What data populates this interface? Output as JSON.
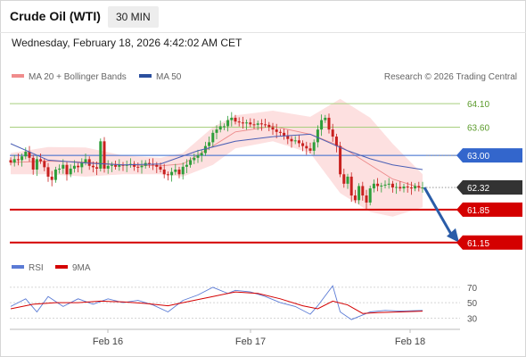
{
  "header": {
    "title": "Crude Oil (WTI)",
    "timeframe": "30 MIN",
    "datetime": "Wednesday, February 18, 2026 4:42:02 AM CET"
  },
  "legend": {
    "bollinger": "MA 20 + Bollinger Bands",
    "ma50": "MA 50",
    "credit": "Research © 2026 Trading Central",
    "rsi": "RSI",
    "rsi_ma": "9MA"
  },
  "colors": {
    "up": "#2e9e3a",
    "down": "#c8201e",
    "bollinger_fill": "#fde0e0",
    "ma20": "#ec8a8a",
    "ma50": "#4a5fb5",
    "support": "#d40000",
    "resistance_minor": "#a8cf7e",
    "resistance_major": "#3366cc",
    "current": "#333333",
    "arrow": "#2a5ca8",
    "rsi": "#5b7bd5",
    "rsi_ma": "#d40000"
  },
  "chart_data": {
    "type": "candlestick",
    "y_range": [
      60.9,
      64.5
    ],
    "x_labels": [
      "Feb 16",
      "Feb 17",
      "Feb 18"
    ],
    "levels": [
      {
        "value": 64.1,
        "label": "64.10",
        "kind": "resistance-minor"
      },
      {
        "value": 63.6,
        "label": "63.60",
        "kind": "resistance-minor"
      },
      {
        "value": 63.0,
        "label": "63.00",
        "kind": "resistance-major"
      },
      {
        "value": 62.32,
        "label": "62.32",
        "kind": "current"
      },
      {
        "value": 61.85,
        "label": "61.85",
        "kind": "support"
      },
      {
        "value": 61.15,
        "label": "61.15",
        "kind": "support"
      }
    ],
    "forecast_target": 61.15,
    "close": [
      62.85,
      62.92,
      62.9,
      62.98,
      63.08,
      62.95,
      62.7,
      62.92,
      62.88,
      62.75,
      62.55,
      62.48,
      62.7,
      62.72,
      62.8,
      62.6,
      62.72,
      62.78,
      62.75,
      62.85,
      62.92,
      62.78,
      62.75,
      62.72,
      63.3,
      62.72,
      62.78,
      62.8,
      62.76,
      62.8,
      62.78,
      62.8,
      62.82,
      62.76,
      62.75,
      62.78,
      62.84,
      62.82,
      62.8,
      62.76,
      62.7,
      62.6,
      62.58,
      62.65,
      62.7,
      62.6,
      62.76,
      62.8,
      62.9,
      62.95,
      63.0,
      63.05,
      63.2,
      63.28,
      63.48,
      63.55,
      63.62,
      63.62,
      63.75,
      63.8,
      63.72,
      63.7,
      63.68,
      63.7,
      63.66,
      63.65,
      63.68,
      63.66,
      63.65,
      63.6,
      63.55,
      63.5,
      63.48,
      63.42,
      63.35,
      63.3,
      63.32,
      63.26,
      63.2,
      63.15,
      63.1,
      63.28,
      63.55,
      63.75,
      63.8,
      63.55,
      63.4,
      63.2,
      62.6,
      62.4,
      62.55,
      62.15,
      62.05,
      62.35,
      62.15,
      62.0,
      62.3,
      62.4,
      62.35,
      62.36,
      62.38,
      62.4,
      62.32,
      62.33,
      62.3,
      62.34,
      62.32,
      62.3,
      62.35,
      62.32,
      62.32
    ],
    "ma50_points": [
      [
        0,
        63.25
      ],
      [
        10,
        62.9
      ],
      [
        20,
        62.84
      ],
      [
        30,
        62.8
      ],
      [
        40,
        62.82
      ],
      [
        50,
        63.1
      ],
      [
        60,
        63.3
      ],
      [
        70,
        63.4
      ],
      [
        80,
        63.45
      ],
      [
        90,
        63.1
      ],
      [
        96,
        62.93
      ],
      [
        102,
        62.8
      ],
      [
        110,
        62.7
      ]
    ],
    "bollinger": {
      "mid": [
        [
          0,
          62.85
        ],
        [
          10,
          62.88
        ],
        [
          20,
          62.86
        ],
        [
          30,
          62.8
        ],
        [
          40,
          62.78
        ],
        [
          46,
          62.82
        ],
        [
          54,
          63.2
        ],
        [
          60,
          63.5
        ],
        [
          70,
          63.62
        ],
        [
          80,
          63.45
        ],
        [
          88,
          63.2
        ],
        [
          96,
          62.8
        ],
        [
          102,
          62.5
        ],
        [
          110,
          62.3
        ]
      ],
      "upper": [
        [
          0,
          63.05
        ],
        [
          10,
          63.18
        ],
        [
          20,
          63.17
        ],
        [
          30,
          63.0
        ],
        [
          40,
          62.95
        ],
        [
          46,
          63.05
        ],
        [
          54,
          63.6
        ],
        [
          60,
          63.85
        ],
        [
          70,
          63.95
        ],
        [
          80,
          63.82
        ],
        [
          88,
          64.2
        ],
        [
          96,
          63.8
        ],
        [
          102,
          63.25
        ],
        [
          110,
          62.6
        ]
      ],
      "lower": [
        [
          0,
          62.6
        ],
        [
          10,
          62.6
        ],
        [
          20,
          62.55
        ],
        [
          30,
          62.6
        ],
        [
          40,
          62.6
        ],
        [
          46,
          62.55
        ],
        [
          54,
          62.8
        ],
        [
          60,
          63.15
        ],
        [
          70,
          63.3
        ],
        [
          80,
          63.05
        ],
        [
          88,
          62.2
        ],
        [
          96,
          61.8
        ],
        [
          102,
          61.7
        ],
        [
          110,
          61.9
        ]
      ]
    },
    "rsi": {
      "y_ticks": [
        70,
        50,
        30
      ],
      "y_range": [
        20,
        78
      ],
      "rsi_points": [
        [
          0,
          45
        ],
        [
          4,
          55
        ],
        [
          7,
          38
        ],
        [
          10,
          58
        ],
        [
          14,
          45
        ],
        [
          18,
          55
        ],
        [
          22,
          48
        ],
        [
          26,
          55
        ],
        [
          30,
          50
        ],
        [
          34,
          53
        ],
        [
          38,
          47
        ],
        [
          42,
          38
        ],
        [
          46,
          53
        ],
        [
          50,
          60
        ],
        [
          54,
          70
        ],
        [
          58,
          62
        ],
        [
          60,
          66
        ],
        [
          64,
          64
        ],
        [
          68,
          58
        ],
        [
          72,
          50
        ],
        [
          76,
          45
        ],
        [
          80,
          35
        ],
        [
          82,
          46
        ],
        [
          86,
          72
        ],
        [
          88,
          38
        ],
        [
          91,
          28
        ],
        [
          96,
          38
        ],
        [
          100,
          40
        ],
        [
          104,
          39
        ],
        [
          110,
          40
        ]
      ],
      "ma_points": [
        [
          0,
          42
        ],
        [
          6,
          48
        ],
        [
          12,
          50
        ],
        [
          18,
          50
        ],
        [
          24,
          52
        ],
        [
          30,
          51
        ],
        [
          36,
          49
        ],
        [
          42,
          46
        ],
        [
          48,
          52
        ],
        [
          54,
          58
        ],
        [
          60,
          64
        ],
        [
          66,
          62
        ],
        [
          72,
          55
        ],
        [
          78,
          46
        ],
        [
          82,
          42
        ],
        [
          86,
          52
        ],
        [
          90,
          47
        ],
        [
          94,
          36
        ],
        [
          98,
          37
        ],
        [
          104,
          38
        ],
        [
          110,
          39
        ]
      ]
    }
  }
}
